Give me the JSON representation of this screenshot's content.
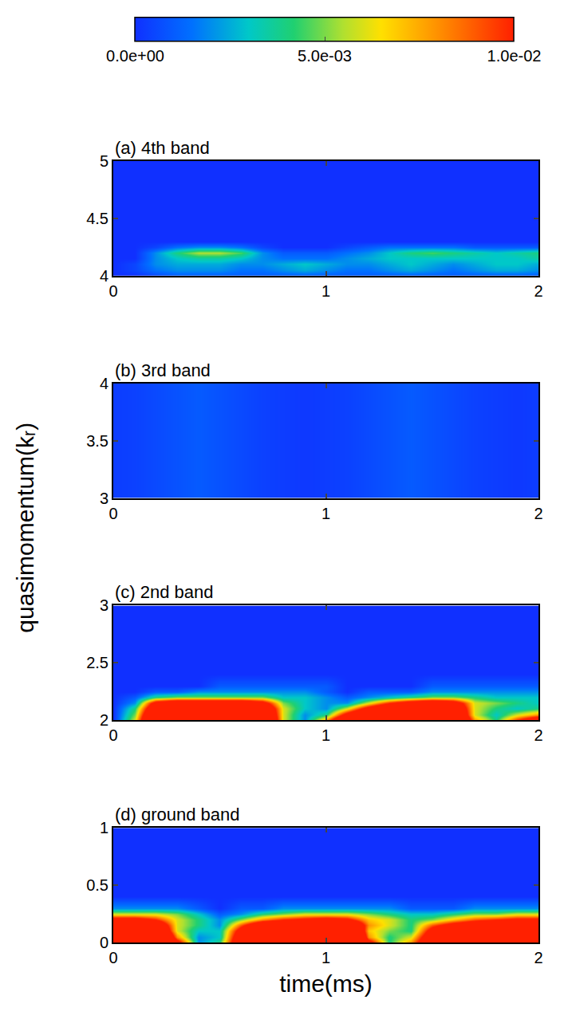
{
  "chart_data": {
    "type": "heatmap",
    "xlabel": "time(ms)",
    "ylabel": "quasimomentum(kᵣ)",
    "x": [
      0,
      0.1,
      0.2,
      0.3,
      0.4,
      0.5,
      0.6,
      0.7,
      0.8,
      0.9,
      1.0,
      1.1,
      1.2,
      1.3,
      1.4,
      1.5,
      1.6,
      1.7,
      1.8,
      1.9,
      2.0
    ],
    "xlim": [
      0,
      2
    ],
    "xticks": [
      0,
      1,
      2
    ],
    "colorbar": {
      "range": [
        0,
        0.01
      ],
      "ticks": [
        {
          "value": 0,
          "label": "0.0e+00"
        },
        {
          "value": 0.005,
          "label": "5.0e-03"
        },
        {
          "value": 0.01,
          "label": "1.0e-02"
        }
      ]
    },
    "panels": [
      {
        "title": "(a) 4th band",
        "ylim": [
          4,
          5
        ],
        "yticks": [
          4,
          4.5,
          5
        ],
        "y": [
          4,
          4.05,
          4.1,
          4.15,
          4.2,
          4.25,
          4.3,
          4.4,
          4.5,
          4.75,
          5
        ],
        "z": [
          [
            0,
            0,
            0.0005,
            0.001,
            0.001,
            0.001,
            0.001,
            0.001,
            0.001,
            0.001,
            0.001,
            0.001,
            0.001,
            0.001,
            0.001,
            0.001,
            0.001,
            0.001,
            0.001,
            0.001,
            0.001
          ],
          [
            0,
            0.0005,
            0.0015,
            0.002,
            0.002,
            0.002,
            0.0015,
            0.0015,
            0.002,
            0.0025,
            0.002,
            0.0015,
            0.0015,
            0.002,
            0.0025,
            0.002,
            0.0015,
            0.002,
            0.0025,
            0.0025,
            0.002
          ],
          [
            0,
            0.0005,
            0.002,
            0.0025,
            0.0025,
            0.0025,
            0.002,
            0.002,
            0.0025,
            0.003,
            0.0025,
            0.002,
            0.002,
            0.0025,
            0.003,
            0.0025,
            0.002,
            0.0025,
            0.003,
            0.003,
            0.0025
          ],
          [
            0,
            0,
            0.002,
            0.003,
            0.0035,
            0.0035,
            0.003,
            0.002,
            0.0015,
            0.0015,
            0.0015,
            0.002,
            0.0025,
            0.003,
            0.003,
            0.003,
            0.003,
            0.003,
            0.003,
            0.003,
            0.0035
          ],
          [
            0,
            0,
            0.002,
            0.004,
            0.0055,
            0.0055,
            0.0045,
            0.002,
            0.001,
            0.001,
            0.001,
            0.0015,
            0.002,
            0.003,
            0.004,
            0.0045,
            0.004,
            0.0035,
            0.003,
            0.0035,
            0.004
          ],
          [
            0,
            0,
            0.0005,
            0.0015,
            0.002,
            0.002,
            0.0015,
            0.0005,
            0,
            0,
            0,
            0.0005,
            0.001,
            0.0015,
            0.0015,
            0.0015,
            0.0015,
            0.001,
            0.001,
            0.001,
            0.001
          ],
          [
            0,
            0,
            0,
            0,
            0,
            0,
            0,
            0,
            0,
            0,
            0,
            0,
            0,
            0,
            0,
            0,
            0,
            0,
            0,
            0,
            0
          ],
          [
            0,
            0,
            0,
            0,
            0,
            0,
            0,
            0,
            0,
            0,
            0,
            0,
            0,
            0,
            0,
            0,
            0,
            0,
            0,
            0,
            0
          ],
          [
            0,
            0,
            0,
            0,
            0,
            0,
            0,
            0,
            0,
            0,
            0,
            0,
            0,
            0,
            0,
            0,
            0,
            0,
            0,
            0,
            0
          ],
          [
            0,
            0,
            0,
            0,
            0,
            0,
            0,
            0,
            0,
            0,
            0,
            0,
            0,
            0,
            0,
            0,
            0,
            0,
            0,
            0,
            0
          ],
          [
            0,
            0,
            0,
            0,
            0,
            0,
            0,
            0,
            0,
            0,
            0,
            0,
            0,
            0,
            0,
            0,
            0,
            0,
            0,
            0,
            0
          ]
        ]
      },
      {
        "title": "(b) 3rd band",
        "ylim": [
          3,
          4
        ],
        "yticks": [
          3,
          3.5,
          4
        ],
        "y": [
          3,
          3.25,
          3.5,
          3.75,
          4
        ],
        "z": [
          [
            0.0003,
            0.0004,
            0.0006,
            0.0008,
            0.001,
            0.0008,
            0.0006,
            0.0004,
            0.0003,
            0.0002,
            0.0003,
            0.0004,
            0.0006,
            0.0008,
            0.001,
            0.0008,
            0.0006,
            0.0004,
            0.0003,
            0.0002,
            0.0003
          ],
          [
            0.0003,
            0.0004,
            0.0006,
            0.0008,
            0.001,
            0.0008,
            0.0006,
            0.0004,
            0.0003,
            0.0002,
            0.0003,
            0.0004,
            0.0006,
            0.0008,
            0.001,
            0.0008,
            0.0006,
            0.0004,
            0.0003,
            0.0002,
            0.0003
          ],
          [
            0.0003,
            0.0004,
            0.0006,
            0.0008,
            0.001,
            0.0008,
            0.0006,
            0.0004,
            0.0003,
            0.0002,
            0.0003,
            0.0004,
            0.0006,
            0.0008,
            0.001,
            0.0008,
            0.0006,
            0.0004,
            0.0003,
            0.0002,
            0.0003
          ],
          [
            0.0003,
            0.0004,
            0.0006,
            0.0008,
            0.001,
            0.0008,
            0.0006,
            0.0004,
            0.0003,
            0.0002,
            0.0003,
            0.0004,
            0.0006,
            0.0008,
            0.001,
            0.0008,
            0.0006,
            0.0004,
            0.0003,
            0.0002,
            0.0003
          ],
          [
            0.0003,
            0.0004,
            0.0006,
            0.0008,
            0.001,
            0.0008,
            0.0006,
            0.0004,
            0.0003,
            0.0002,
            0.0003,
            0.0004,
            0.0006,
            0.0008,
            0.001,
            0.0008,
            0.0006,
            0.0004,
            0.0003,
            0.0002,
            0.0003
          ]
        ]
      },
      {
        "title": "(c) 2nd band",
        "ylim": [
          2,
          3
        ],
        "yticks": [
          2,
          2.5,
          3
        ],
        "y": [
          2,
          2.05,
          2.1,
          2.15,
          2.2,
          2.25,
          2.3,
          2.4,
          2.5,
          2.75,
          3
        ],
        "z": [
          [
            0,
            0.006,
            0.02,
            0.025,
            0.025,
            0.025,
            0.025,
            0.02,
            0.006,
            0.002,
            0.008,
            0.018,
            0.022,
            0.025,
            0.025,
            0.025,
            0.02,
            0.008,
            0.004,
            0.01,
            0.015
          ],
          [
            0,
            0.005,
            0.018,
            0.022,
            0.022,
            0.022,
            0.022,
            0.018,
            0.006,
            0.002,
            0.004,
            0.012,
            0.018,
            0.022,
            0.022,
            0.022,
            0.018,
            0.006,
            0.003,
            0.006,
            0.008
          ],
          [
            0,
            0.004,
            0.015,
            0.02,
            0.02,
            0.02,
            0.02,
            0.016,
            0.006,
            0.003,
            0.002,
            0.006,
            0.012,
            0.016,
            0.018,
            0.02,
            0.016,
            0.006,
            0.004,
            0.003,
            0.004
          ],
          [
            0,
            0.002,
            0.012,
            0.015,
            0.015,
            0.015,
            0.015,
            0.012,
            0.005,
            0.003,
            0.002,
            0.002,
            0.006,
            0.01,
            0.013,
            0.015,
            0.013,
            0.006,
            0.005,
            0.004,
            0.003
          ],
          [
            0,
            0.001,
            0.004,
            0.005,
            0.005,
            0.005,
            0.005,
            0.005,
            0.003,
            0.003,
            0.002,
            0.001,
            0.002,
            0.003,
            0.004,
            0.005,
            0.005,
            0.004,
            0.003,
            0.003,
            0.003
          ],
          [
            0,
            0,
            0.001,
            0.001,
            0.002,
            0.002,
            0.002,
            0.002,
            0.002,
            0.002,
            0.001,
            0,
            0.001,
            0.001,
            0.001,
            0.002,
            0.002,
            0.002,
            0.002,
            0.002,
            0.002
          ],
          [
            0,
            0,
            0,
            0,
            0,
            0.001,
            0.001,
            0.001,
            0.001,
            0.001,
            0.001,
            0,
            0,
            0,
            0,
            0.001,
            0.001,
            0.001,
            0.001,
            0.001,
            0.001
          ],
          [
            0,
            0,
            0,
            0,
            0,
            0,
            0,
            0,
            0,
            0,
            0,
            0,
            0,
            0,
            0,
            0,
            0,
            0,
            0,
            0,
            0
          ],
          [
            0,
            0,
            0,
            0,
            0,
            0,
            0,
            0,
            0,
            0,
            0,
            0,
            0,
            0,
            0,
            0,
            0,
            0,
            0,
            0,
            0
          ],
          [
            0,
            0,
            0,
            0,
            0,
            0,
            0,
            0,
            0,
            0,
            0,
            0,
            0,
            0,
            0,
            0,
            0,
            0,
            0,
            0,
            0
          ],
          [
            0,
            0,
            0,
            0,
            0,
            0,
            0,
            0,
            0,
            0,
            0,
            0,
            0,
            0,
            0,
            0,
            0,
            0,
            0,
            0,
            0
          ]
        ]
      },
      {
        "title": "(d) ground band",
        "ylim": [
          0,
          1
        ],
        "yticks": [
          0,
          0.5,
          1
        ],
        "y": [
          0,
          0.05,
          0.1,
          0.15,
          0.2,
          0.25,
          0.3,
          0.4,
          0.5,
          0.75,
          1
        ],
        "z": [
          [
            0.03,
            0.03,
            0.025,
            0.012,
            0.002,
            0.004,
            0.015,
            0.02,
            0.025,
            0.028,
            0.03,
            0.028,
            0.012,
            0.004,
            0.008,
            0.015,
            0.018,
            0.02,
            0.022,
            0.022,
            0.022
          ],
          [
            0.03,
            0.03,
            0.022,
            0.008,
            0.002,
            0.003,
            0.014,
            0.02,
            0.024,
            0.027,
            0.028,
            0.026,
            0.008,
            0.004,
            0.006,
            0.014,
            0.017,
            0.019,
            0.02,
            0.021,
            0.021
          ],
          [
            0.025,
            0.025,
            0.018,
            0.006,
            0.003,
            0.003,
            0.012,
            0.018,
            0.022,
            0.025,
            0.025,
            0.022,
            0.007,
            0.005,
            0.004,
            0.012,
            0.015,
            0.017,
            0.018,
            0.019,
            0.02
          ],
          [
            0.02,
            0.02,
            0.015,
            0.006,
            0.004,
            0.002,
            0.009,
            0.015,
            0.018,
            0.02,
            0.02,
            0.018,
            0.008,
            0.006,
            0.004,
            0.009,
            0.012,
            0.014,
            0.016,
            0.017,
            0.018
          ],
          [
            0.012,
            0.012,
            0.01,
            0.006,
            0.004,
            0.002,
            0.005,
            0.008,
            0.01,
            0.011,
            0.012,
            0.011,
            0.007,
            0.006,
            0.004,
            0.005,
            0.007,
            0.009,
            0.01,
            0.011,
            0.011
          ],
          [
            0.006,
            0.006,
            0.006,
            0.005,
            0.003,
            0.001,
            0.002,
            0.004,
            0.005,
            0.006,
            0.006,
            0.006,
            0.005,
            0.004,
            0.003,
            0.003,
            0.004,
            0.005,
            0.005,
            0.006,
            0.006
          ],
          [
            0.002,
            0.002,
            0.002,
            0.002,
            0.001,
            0,
            0.001,
            0.001,
            0.002,
            0.002,
            0.002,
            0.002,
            0.002,
            0.002,
            0.001,
            0.001,
            0.001,
            0.002,
            0.002,
            0.002,
            0.002
          ],
          [
            0,
            0,
            0,
            0,
            0,
            0,
            0,
            0,
            0,
            0,
            0,
            0,
            0,
            0,
            0,
            0,
            0,
            0,
            0,
            0,
            0
          ],
          [
            0,
            0,
            0,
            0,
            0,
            0,
            0,
            0,
            0,
            0,
            0,
            0,
            0,
            0,
            0,
            0,
            0,
            0,
            0,
            0,
            0
          ],
          [
            0,
            0,
            0,
            0,
            0,
            0,
            0,
            0,
            0,
            0,
            0,
            0,
            0,
            0,
            0,
            0,
            0,
            0,
            0,
            0,
            0
          ],
          [
            0,
            0,
            0,
            0,
            0,
            0,
            0,
            0,
            0,
            0,
            0,
            0,
            0,
            0,
            0,
            0,
            0,
            0,
            0,
            0,
            0
          ]
        ]
      }
    ]
  }
}
